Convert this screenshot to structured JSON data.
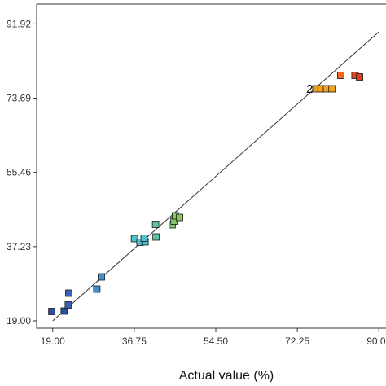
{
  "chart_data": {
    "type": "scatter",
    "xlabel": "Actual value (%)",
    "ylabel": "",
    "xlim": [
      15.5,
      93.5
    ],
    "ylim": [
      17.2,
      96.8
    ],
    "xticks": [
      19.0,
      36.75,
      54.5,
      72.25,
      90.0
    ],
    "xtick_labels": [
      "19.00",
      "36.75",
      "54.50",
      "72.25",
      "90.00"
    ],
    "yticks": [
      19.0,
      37.23,
      55.46,
      73.69,
      91.92
    ],
    "ytick_labels": [
      "19.00",
      "37.23",
      "55.46",
      "73.69",
      "91.92"
    ],
    "grid": false,
    "reference_line": {
      "from": [
        19.0,
        19.0
      ],
      "to": [
        90.0,
        90.0
      ]
    },
    "annotations": [
      {
        "text": "2",
        "x": 76.0,
        "y": 76.0
      }
    ],
    "points": [
      {
        "x": 18.8,
        "y": 21.3,
        "color": "#2b4fa0"
      },
      {
        "x": 21.5,
        "y": 21.4,
        "color": "#2b4fa0"
      },
      {
        "x": 22.4,
        "y": 22.9,
        "color": "#3a62b4"
      },
      {
        "x": 22.5,
        "y": 25.8,
        "color": "#3a62b4"
      },
      {
        "x": 28.6,
        "y": 26.8,
        "color": "#3d8fd6"
      },
      {
        "x": 29.6,
        "y": 29.8,
        "color": "#3d8fd6"
      },
      {
        "x": 36.8,
        "y": 39.2,
        "color": "#4fc0cc"
      },
      {
        "x": 38.0,
        "y": 38.3,
        "color": "#4fc0cc"
      },
      {
        "x": 39.1,
        "y": 38.4,
        "color": "#4fc0cc"
      },
      {
        "x": 38.9,
        "y": 39.3,
        "color": "#4fc0cc"
      },
      {
        "x": 41.5,
        "y": 39.6,
        "color": "#5ec3a3"
      },
      {
        "x": 41.4,
        "y": 42.7,
        "color": "#5ec3a3"
      },
      {
        "x": 45.0,
        "y": 42.6,
        "color": "#7fc46a"
      },
      {
        "x": 45.4,
        "y": 43.5,
        "color": "#7fc46a"
      },
      {
        "x": 45.7,
        "y": 44.8,
        "color": "#88c657"
      },
      {
        "x": 46.6,
        "y": 44.4,
        "color": "#88c657"
      },
      {
        "x": 76.3,
        "y": 76.0,
        "color": "#f0a21b"
      },
      {
        "x": 77.4,
        "y": 76.0,
        "color": "#f0a21b"
      },
      {
        "x": 78.6,
        "y": 76.0,
        "color": "#f0a21b"
      },
      {
        "x": 79.8,
        "y": 76.0,
        "color": "#f0a21b"
      },
      {
        "x": 81.7,
        "y": 79.3,
        "color": "#ef6a1d"
      },
      {
        "x": 84.8,
        "y": 79.3,
        "color": "#e8461e"
      },
      {
        "x": 85.8,
        "y": 78.9,
        "color": "#e04020"
      }
    ]
  }
}
